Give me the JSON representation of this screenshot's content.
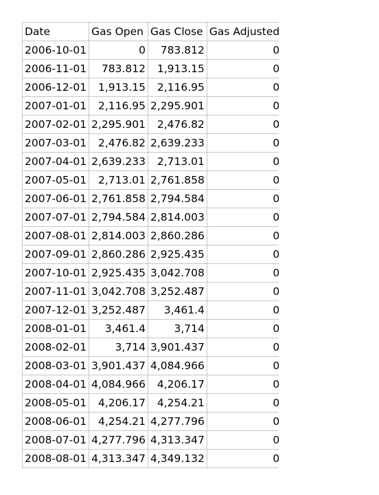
{
  "sheet": {
    "headers": [
      "Date",
      "Gas Open",
      "Gas Close",
      "Gas Adjusted"
    ],
    "rows": [
      [
        "2006-10-01",
        "0",
        "783.812",
        "0"
      ],
      [
        "2006-11-01",
        "783.812",
        "1,913.15",
        "0"
      ],
      [
        "2006-12-01",
        "1,913.15",
        "2,116.95",
        "0"
      ],
      [
        "2007-01-01",
        "2,116.95",
        "2,295.901",
        "0"
      ],
      [
        "2007-02-01",
        "2,295.901",
        "2,476.82",
        "0"
      ],
      [
        "2007-03-01",
        "2,476.82",
        "2,639.233",
        "0"
      ],
      [
        "2007-04-01",
        "2,639.233",
        "2,713.01",
        "0"
      ],
      [
        "2007-05-01",
        "2,713.01",
        "2,761.858",
        "0"
      ],
      [
        "2007-06-01",
        "2,761.858",
        "2,794.584",
        "0"
      ],
      [
        "2007-07-01",
        "2,794.584",
        "2,814.003",
        "0"
      ],
      [
        "2007-08-01",
        "2,814.003",
        "2,860.286",
        "0"
      ],
      [
        "2007-09-01",
        "2,860.286",
        "2,925.435",
        "0"
      ],
      [
        "2007-10-01",
        "2,925.435",
        "3,042.708",
        "0"
      ],
      [
        "2007-11-01",
        "3,042.708",
        "3,252.487",
        "0"
      ],
      [
        "2007-12-01",
        "3,252.487",
        "3,461.4",
        "0"
      ],
      [
        "2008-01-01",
        "3,461.4",
        "3,714",
        "0"
      ],
      [
        "2008-02-01",
        "3,714",
        "3,901.437",
        "0"
      ],
      [
        "2008-03-01",
        "3,901.437",
        "4,084.966",
        "0"
      ],
      [
        "2008-04-01",
        "4,084.966",
        "4,206.17",
        "0"
      ],
      [
        "2008-05-01",
        "4,206.17",
        "4,254.21",
        "0"
      ],
      [
        "2008-06-01",
        "4,254.21",
        "4,277.796",
        "0"
      ],
      [
        "2008-07-01",
        "4,277.796",
        "4,313.347",
        "0"
      ],
      [
        "2008-08-01",
        "4,313.347",
        "4,349.132",
        "0"
      ]
    ]
  }
}
